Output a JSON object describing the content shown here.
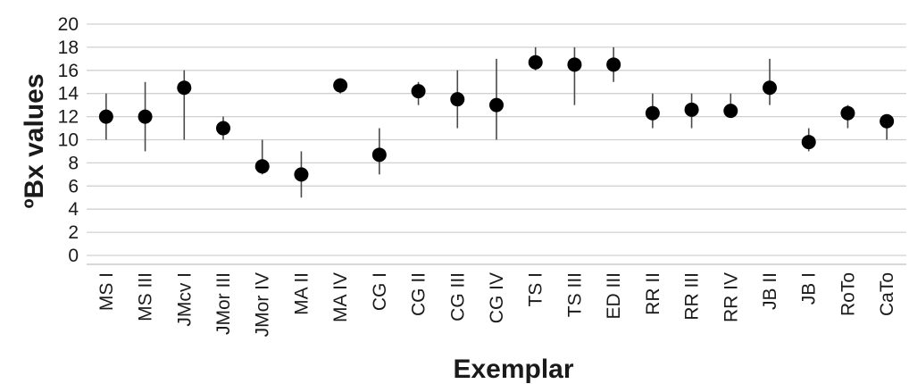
{
  "chart_data": {
    "type": "scatter",
    "title": "",
    "xlabel": "Exemplar",
    "ylabel": "ºBx values",
    "ylim": [
      0,
      20
    ],
    "yticks": [
      0,
      2,
      4,
      6,
      8,
      10,
      12,
      14,
      16,
      18,
      20
    ],
    "grid": "horizontal",
    "legend": "none",
    "marker_color": "#000000",
    "errorbar_color": "#4a4a4a",
    "categories": [
      "MS I",
      "MS III",
      "JMcv I",
      "JMor III",
      "JMor IV",
      "MA II",
      "MA IV",
      "CG I",
      "CG II",
      "CG III",
      "CG IV",
      "TS I",
      "TS III",
      "ED III",
      "RR II",
      "RR III",
      "RR IV",
      "JB II",
      "JB I",
      "RoTo",
      "CaTo"
    ],
    "values": [
      12.0,
      12.0,
      14.5,
      11.0,
      7.7,
      7.0,
      14.7,
      8.7,
      14.2,
      13.5,
      13.0,
      16.7,
      16.5,
      16.5,
      12.3,
      12.6,
      12.5,
      14.5,
      9.8,
      12.3,
      11.6
    ],
    "error_low": [
      10.0,
      9.0,
      10.0,
      10.0,
      7.0,
      5.0,
      14.0,
      7.0,
      13.0,
      11.0,
      10.0,
      16.0,
      13.0,
      15.0,
      11.0,
      11.0,
      12.0,
      13.0,
      9.0,
      11.0,
      10.0
    ],
    "error_high": [
      14.0,
      15.0,
      16.0,
      12.0,
      10.0,
      9.0,
      15.0,
      11.0,
      15.0,
      16.0,
      17.0,
      18.0,
      18.0,
      18.0,
      14.0,
      14.0,
      14.0,
      17.0,
      11.0,
      13.0,
      12.0
    ]
  }
}
